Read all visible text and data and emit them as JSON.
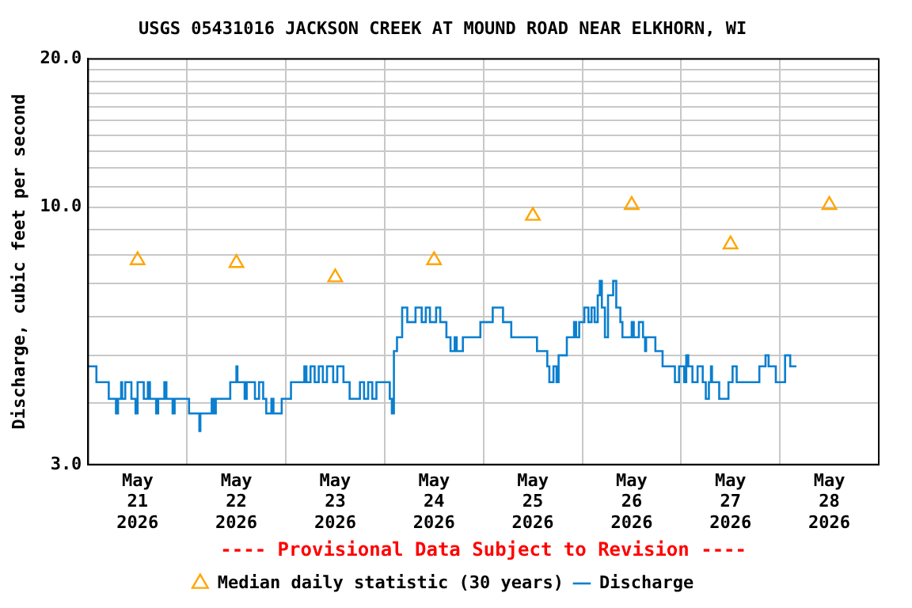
{
  "chart_data": {
    "type": "step",
    "title": "USGS 05431016 JACKSON CREEK AT MOUND ROAD NEAR ELKHORN, WI",
    "ylabel": "Discharge, cubic feet per second",
    "annotations": [
      "---- Provisional Data Subject to Revision ----"
    ],
    "log": "y",
    "grid": true,
    "legend": "bottom",
    "xlim": [
      "2026-05-21T00:00",
      "2026-05-29T00:00"
    ],
    "xticks": [
      {
        "value": "2026-05-21T00:00",
        "label": null
      },
      {
        "value": "2026-05-21T12:00",
        "label": "May\n21\n2026"
      },
      {
        "value": "2026-05-22T00:00",
        "label": null
      },
      {
        "value": "2026-05-22T12:00",
        "label": "May\n22\n2026"
      },
      {
        "value": "2026-05-23T00:00",
        "label": null
      },
      {
        "value": "2026-05-23T12:00",
        "label": "May\n23\n2026"
      },
      {
        "value": "2026-05-24T00:00",
        "label": null
      },
      {
        "value": "2026-05-24T12:00",
        "label": "May\n24\n2026"
      },
      {
        "value": "2026-05-25T00:00",
        "label": null
      },
      {
        "value": "2026-05-25T12:00",
        "label": "May\n25\n2026"
      },
      {
        "value": "2026-05-26T00:00",
        "label": null
      },
      {
        "value": "2026-05-26T12:00",
        "label": "May\n26\n2026"
      },
      {
        "value": "2026-05-27T00:00",
        "label": null
      },
      {
        "value": "2026-05-27T12:00",
        "label": "May\n27\n2026"
      },
      {
        "value": "2026-05-28T00:00",
        "label": null
      },
      {
        "value": "2026-05-28T12:00",
        "label": "May\n28\n2026"
      },
      {
        "value": "2026-05-29T00:00",
        "label": null
      }
    ],
    "ylim": [
      3,
      20
    ],
    "yticks": [
      {
        "value": 3,
        "label": "3.0"
      },
      {
        "value": 4,
        "label": null
      },
      {
        "value": 5,
        "label": null
      },
      {
        "value": 6,
        "label": null
      },
      {
        "value": 7,
        "label": null
      },
      {
        "value": 8,
        "label": null
      },
      {
        "value": 9,
        "label": null
      },
      {
        "value": 10,
        "label": "10.0"
      },
      {
        "value": 11,
        "label": null
      },
      {
        "value": 12,
        "label": null
      },
      {
        "value": 13,
        "label": null
      },
      {
        "value": 14,
        "label": null
      },
      {
        "value": 15,
        "label": null
      },
      {
        "value": 16,
        "label": null
      },
      {
        "value": 17,
        "label": null
      },
      {
        "value": 18,
        "label": null
      },
      {
        "value": 19,
        "label": null
      },
      {
        "value": 20,
        "label": "20.0"
      }
    ],
    "series": [
      {
        "name": "Median daily statistic (30 years)",
        "type": "scatter",
        "marker": "triangle",
        "color": "#ffa500",
        "x": [
          "2026-05-21T12:00",
          "2026-05-22T12:00",
          "2026-05-23T12:00",
          "2026-05-24T12:00",
          "2026-05-25T12:00",
          "2026-05-26T12:00",
          "2026-05-27T12:00",
          "2026-05-28T12:00"
        ],
        "values": [
          7.8,
          7.7,
          7.2,
          7.8,
          9.6,
          10.1,
          8.4,
          10.1
        ]
      },
      {
        "name": "Discharge",
        "color": "#0a7fcf",
        "x": [
          "2026-05-21T00:00",
          "2026-05-21T02:00",
          "2026-05-21T05:00",
          "2026-05-21T06:45",
          "2026-05-21T07:15",
          "2026-05-21T08:00",
          "2026-05-21T08:15",
          "2026-05-21T09:00",
          "2026-05-21T10:30",
          "2026-05-21T11:30",
          "2026-05-21T12:00",
          "2026-05-21T13:30",
          "2026-05-21T14:30",
          "2026-05-21T15:00",
          "2026-05-21T16:30",
          "2026-05-21T17:00",
          "2026-05-21T18:30",
          "2026-05-21T19:00",
          "2026-05-21T20:30",
          "2026-05-21T21:00",
          "2026-05-22T00:30",
          "2026-05-22T03:00",
          "2026-05-22T03:15",
          "2026-05-22T06:00",
          "2026-05-22T06:30",
          "2026-05-22T07:00",
          "2026-05-22T10:30",
          "2026-05-22T12:00",
          "2026-05-22T12:15",
          "2026-05-22T14:00",
          "2026-05-22T14:30",
          "2026-05-22T16:30",
          "2026-05-22T17:30",
          "2026-05-22T18:30",
          "2026-05-22T19:15",
          "2026-05-22T20:30",
          "2026-05-22T21:00",
          "2026-05-22T23:00",
          "2026-05-23T01:15",
          "2026-05-23T04:30",
          "2026-05-23T05:00",
          "2026-05-23T06:00",
          "2026-05-23T07:00",
          "2026-05-23T08:00",
          "2026-05-23T09:00",
          "2026-05-23T10:00",
          "2026-05-23T11:30",
          "2026-05-23T12:30",
          "2026-05-23T14:00",
          "2026-05-23T15:30",
          "2026-05-23T18:00",
          "2026-05-23T19:00",
          "2026-05-23T20:00",
          "2026-05-23T21:00",
          "2026-05-23T22:00",
          "2026-05-24T01:15",
          "2026-05-24T01:45",
          "2026-05-24T02:15",
          "2026-05-24T03:00",
          "2026-05-24T04:15",
          "2026-05-24T05:30",
          "2026-05-24T07:30",
          "2026-05-24T09:00",
          "2026-05-24T10:00",
          "2026-05-24T11:00",
          "2026-05-24T12:30",
          "2026-05-24T13:30",
          "2026-05-24T15:00",
          "2026-05-24T16:00",
          "2026-05-24T17:00",
          "2026-05-24T17:30",
          "2026-05-24T19:00",
          "2026-05-24T23:15",
          "2026-05-25T02:15",
          "2026-05-25T04:45",
          "2026-05-25T06:45",
          "2026-05-25T13:00",
          "2026-05-25T15:30",
          "2026-05-25T16:00",
          "2026-05-25T17:00",
          "2026-05-25T17:45",
          "2026-05-25T18:15",
          "2026-05-25T20:15",
          "2026-05-25T22:00",
          "2026-05-25T22:30",
          "2026-05-25T23:15",
          "2026-05-26T00:30",
          "2026-05-26T01:30",
          "2026-05-26T02:15",
          "2026-05-26T03:00",
          "2026-05-26T03:45",
          "2026-05-26T04:15",
          "2026-05-26T04:45",
          "2026-05-26T05:30",
          "2026-05-26T06:15",
          "2026-05-26T07:30",
          "2026-05-26T08:15",
          "2026-05-26T09:15",
          "2026-05-26T09:45",
          "2026-05-26T12:00",
          "2026-05-26T12:30",
          "2026-05-26T13:45",
          "2026-05-26T14:45",
          "2026-05-26T15:15",
          "2026-05-26T15:30",
          "2026-05-26T17:45",
          "2026-05-26T19:30",
          "2026-05-26T22:30",
          "2026-05-26T23:30",
          "2026-05-27T00:45",
          "2026-05-27T01:15",
          "2026-05-27T01:45",
          "2026-05-27T02:45",
          "2026-05-27T04:00",
          "2026-05-27T05:15",
          "2026-05-27T06:00",
          "2026-05-27T06:45",
          "2026-05-27T07:15",
          "2026-05-27T07:30",
          "2026-05-27T09:15",
          "2026-05-27T11:30",
          "2026-05-27T12:30",
          "2026-05-27T13:30",
          "2026-05-27T19:00",
          "2026-05-27T20:30",
          "2026-05-27T21:15",
          "2026-05-27T23:00",
          "2026-05-28T01:15",
          "2026-05-28T02:30",
          "2026-05-28T04:00"
        ],
        "values": [
          4.75,
          4.41,
          4.08,
          3.81,
          4.08,
          4.41,
          4.08,
          4.41,
          4.08,
          3.81,
          4.41,
          4.08,
          4.41,
          4.08,
          3.81,
          4.08,
          4.41,
          4.08,
          3.81,
          4.08,
          3.81,
          3.51,
          3.81,
          4.08,
          3.81,
          4.08,
          4.41,
          4.75,
          4.41,
          4.08,
          4.41,
          4.08,
          4.41,
          4.08,
          3.81,
          4.08,
          3.81,
          4.08,
          4.41,
          4.75,
          4.41,
          4.75,
          4.41,
          4.75,
          4.41,
          4.75,
          4.41,
          4.75,
          4.41,
          4.08,
          4.41,
          4.08,
          4.41,
          4.08,
          4.41,
          4.08,
          3.81,
          5.1,
          5.44,
          6.25,
          5.84,
          6.25,
          5.84,
          6.25,
          5.84,
          6.25,
          5.84,
          5.44,
          5.1,
          5.44,
          5.1,
          5.44,
          5.84,
          6.25,
          5.84,
          5.44,
          5.1,
          4.75,
          4.41,
          4.75,
          4.41,
          5.0,
          5.44,
          5.84,
          5.44,
          5.84,
          6.25,
          5.84,
          6.25,
          5.84,
          6.62,
          7.08,
          6.25,
          5.44,
          6.62,
          7.08,
          6.25,
          5.84,
          5.44,
          5.84,
          5.44,
          5.84,
          5.44,
          5.1,
          5.44,
          5.1,
          4.75,
          4.41,
          4.75,
          4.41,
          5.0,
          4.75,
          4.41,
          4.75,
          4.41,
          4.08,
          4.41,
          4.75,
          4.41,
          4.08,
          4.41,
          4.75,
          4.41,
          4.75,
          5.0,
          4.75,
          4.41,
          5.0,
          4.75,
          4.75
        ]
      }
    ]
  }
}
